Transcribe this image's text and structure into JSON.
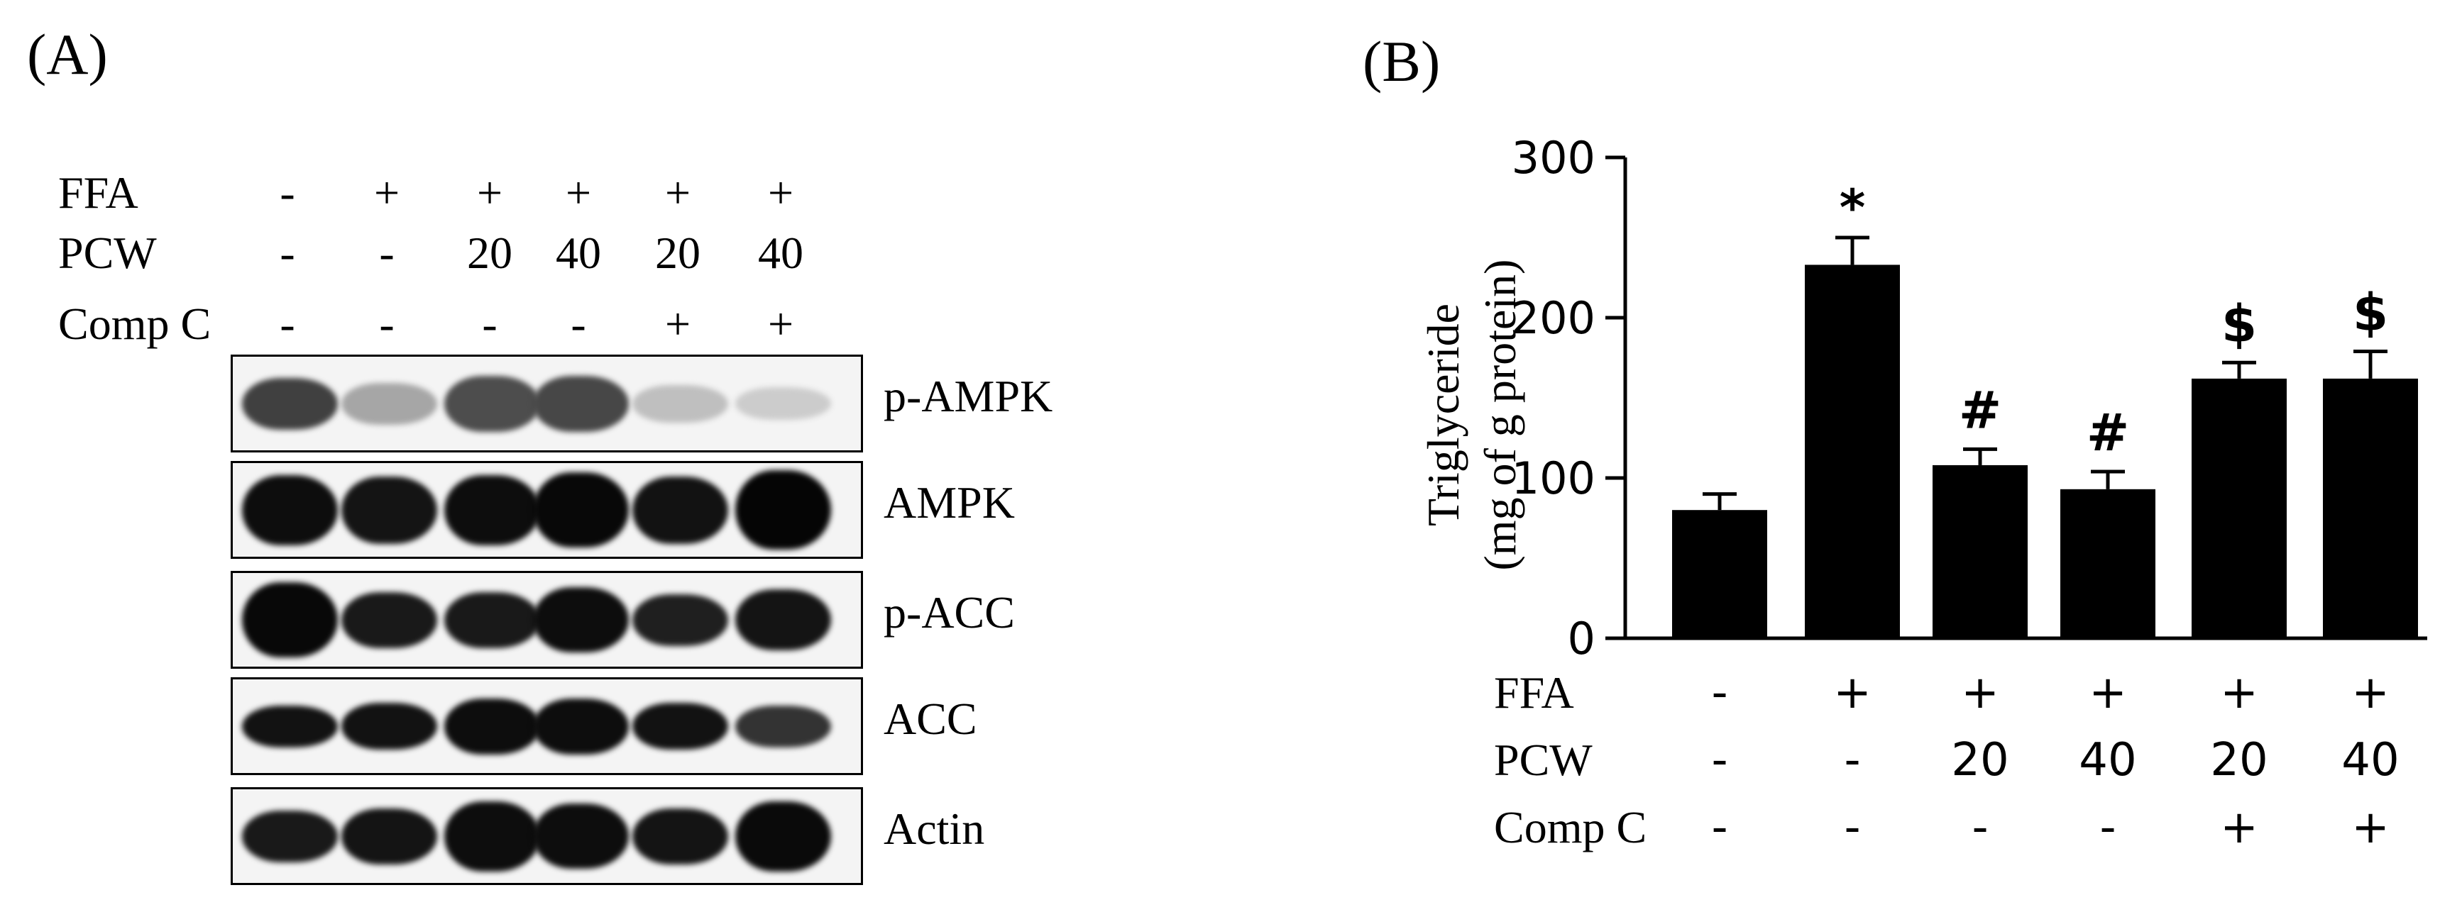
{
  "panel_a": {
    "label": "(A)",
    "conditions": [
      {
        "name": "FFA",
        "values": [
          "-",
          "+",
          "+",
          "+",
          "+",
          "+"
        ]
      },
      {
        "name": "PCW",
        "values": [
          "-",
          "-",
          "20",
          "40",
          "20",
          "40"
        ]
      },
      {
        "name": "Comp C",
        "values": [
          "-",
          "-",
          "-",
          "-",
          "+",
          "+"
        ]
      }
    ],
    "blots": [
      {
        "name": "p-AMPK",
        "intensity": [
          0.75,
          0.35,
          0.7,
          0.72,
          0.25,
          0.2
        ],
        "thickness": [
          0.55,
          0.45,
          0.6,
          0.6,
          0.4,
          0.35
        ]
      },
      {
        "name": "AMPK",
        "intensity": [
          0.95,
          0.92,
          0.95,
          0.97,
          0.93,
          0.98
        ],
        "thickness": [
          0.75,
          0.72,
          0.75,
          0.8,
          0.72,
          0.85
        ]
      },
      {
        "name": "p-ACC",
        "intensity": [
          0.97,
          0.9,
          0.9,
          0.95,
          0.88,
          0.92
        ],
        "thickness": [
          0.8,
          0.6,
          0.6,
          0.7,
          0.55,
          0.65
        ]
      },
      {
        "name": "ACC",
        "intensity": [
          0.93,
          0.93,
          0.95,
          0.95,
          0.93,
          0.8
        ],
        "thickness": [
          0.45,
          0.5,
          0.6,
          0.6,
          0.5,
          0.45
        ]
      },
      {
        "name": "Actin",
        "intensity": [
          0.9,
          0.92,
          0.95,
          0.95,
          0.92,
          0.96
        ],
        "thickness": [
          0.55,
          0.6,
          0.75,
          0.7,
          0.6,
          0.75
        ]
      }
    ]
  },
  "panel_b": {
    "label": "(B)",
    "conditions": [
      {
        "name": "FFA",
        "values": [
          "-",
          "+",
          "+",
          "+",
          "+",
          "+"
        ]
      },
      {
        "name": "PCW",
        "values": [
          "-",
          "-",
          "20",
          "40",
          "20",
          "40"
        ]
      },
      {
        "name": "Comp C",
        "values": [
          "-",
          "-",
          "-",
          "-",
          "+",
          "+"
        ]
      }
    ]
  },
  "chart_data": {
    "type": "bar",
    "categories": [
      "1",
      "2",
      "3",
      "4",
      "5",
      "6"
    ],
    "values": [
      80,
      233,
      108,
      93,
      162,
      162
    ],
    "errors": [
      10,
      17,
      10,
      11,
      10,
      17
    ],
    "annotations": [
      "",
      "*",
      "#",
      "#",
      "$",
      "$"
    ],
    "ylabel_line1": "Triglyceride",
    "ylabel_line2": "(mg of g protein)",
    "ylim": [
      0,
      300
    ],
    "yticks": [
      0,
      100,
      200,
      300
    ],
    "bar_color": "#000000",
    "grid": false
  }
}
